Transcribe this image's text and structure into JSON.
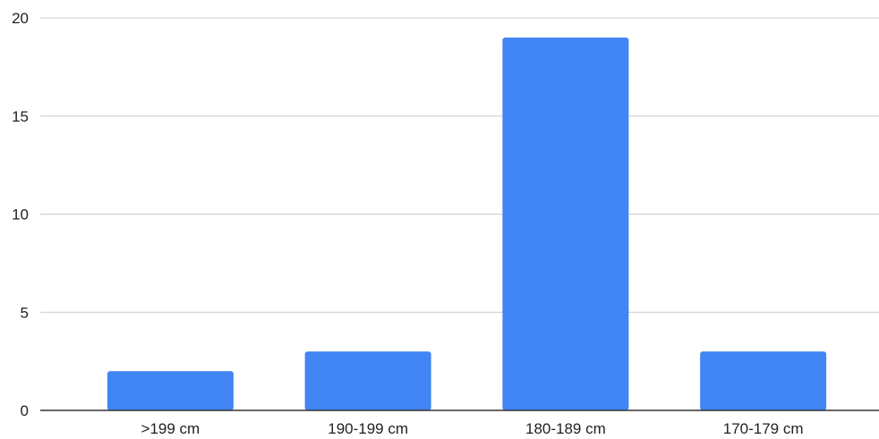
{
  "chart_data": {
    "type": "bar",
    "title": "",
    "xlabel": "",
    "ylabel": "",
    "categories": [
      ">199 cm",
      "190-199 cm",
      "180-189 cm",
      "170-179 cm"
    ],
    "values": [
      2,
      3,
      19,
      3
    ],
    "ylim": [
      0,
      20
    ],
    "yticks": [
      0,
      5,
      10,
      15,
      20
    ],
    "grid": true,
    "legend": "none",
    "bar_color": "#4285f4"
  }
}
